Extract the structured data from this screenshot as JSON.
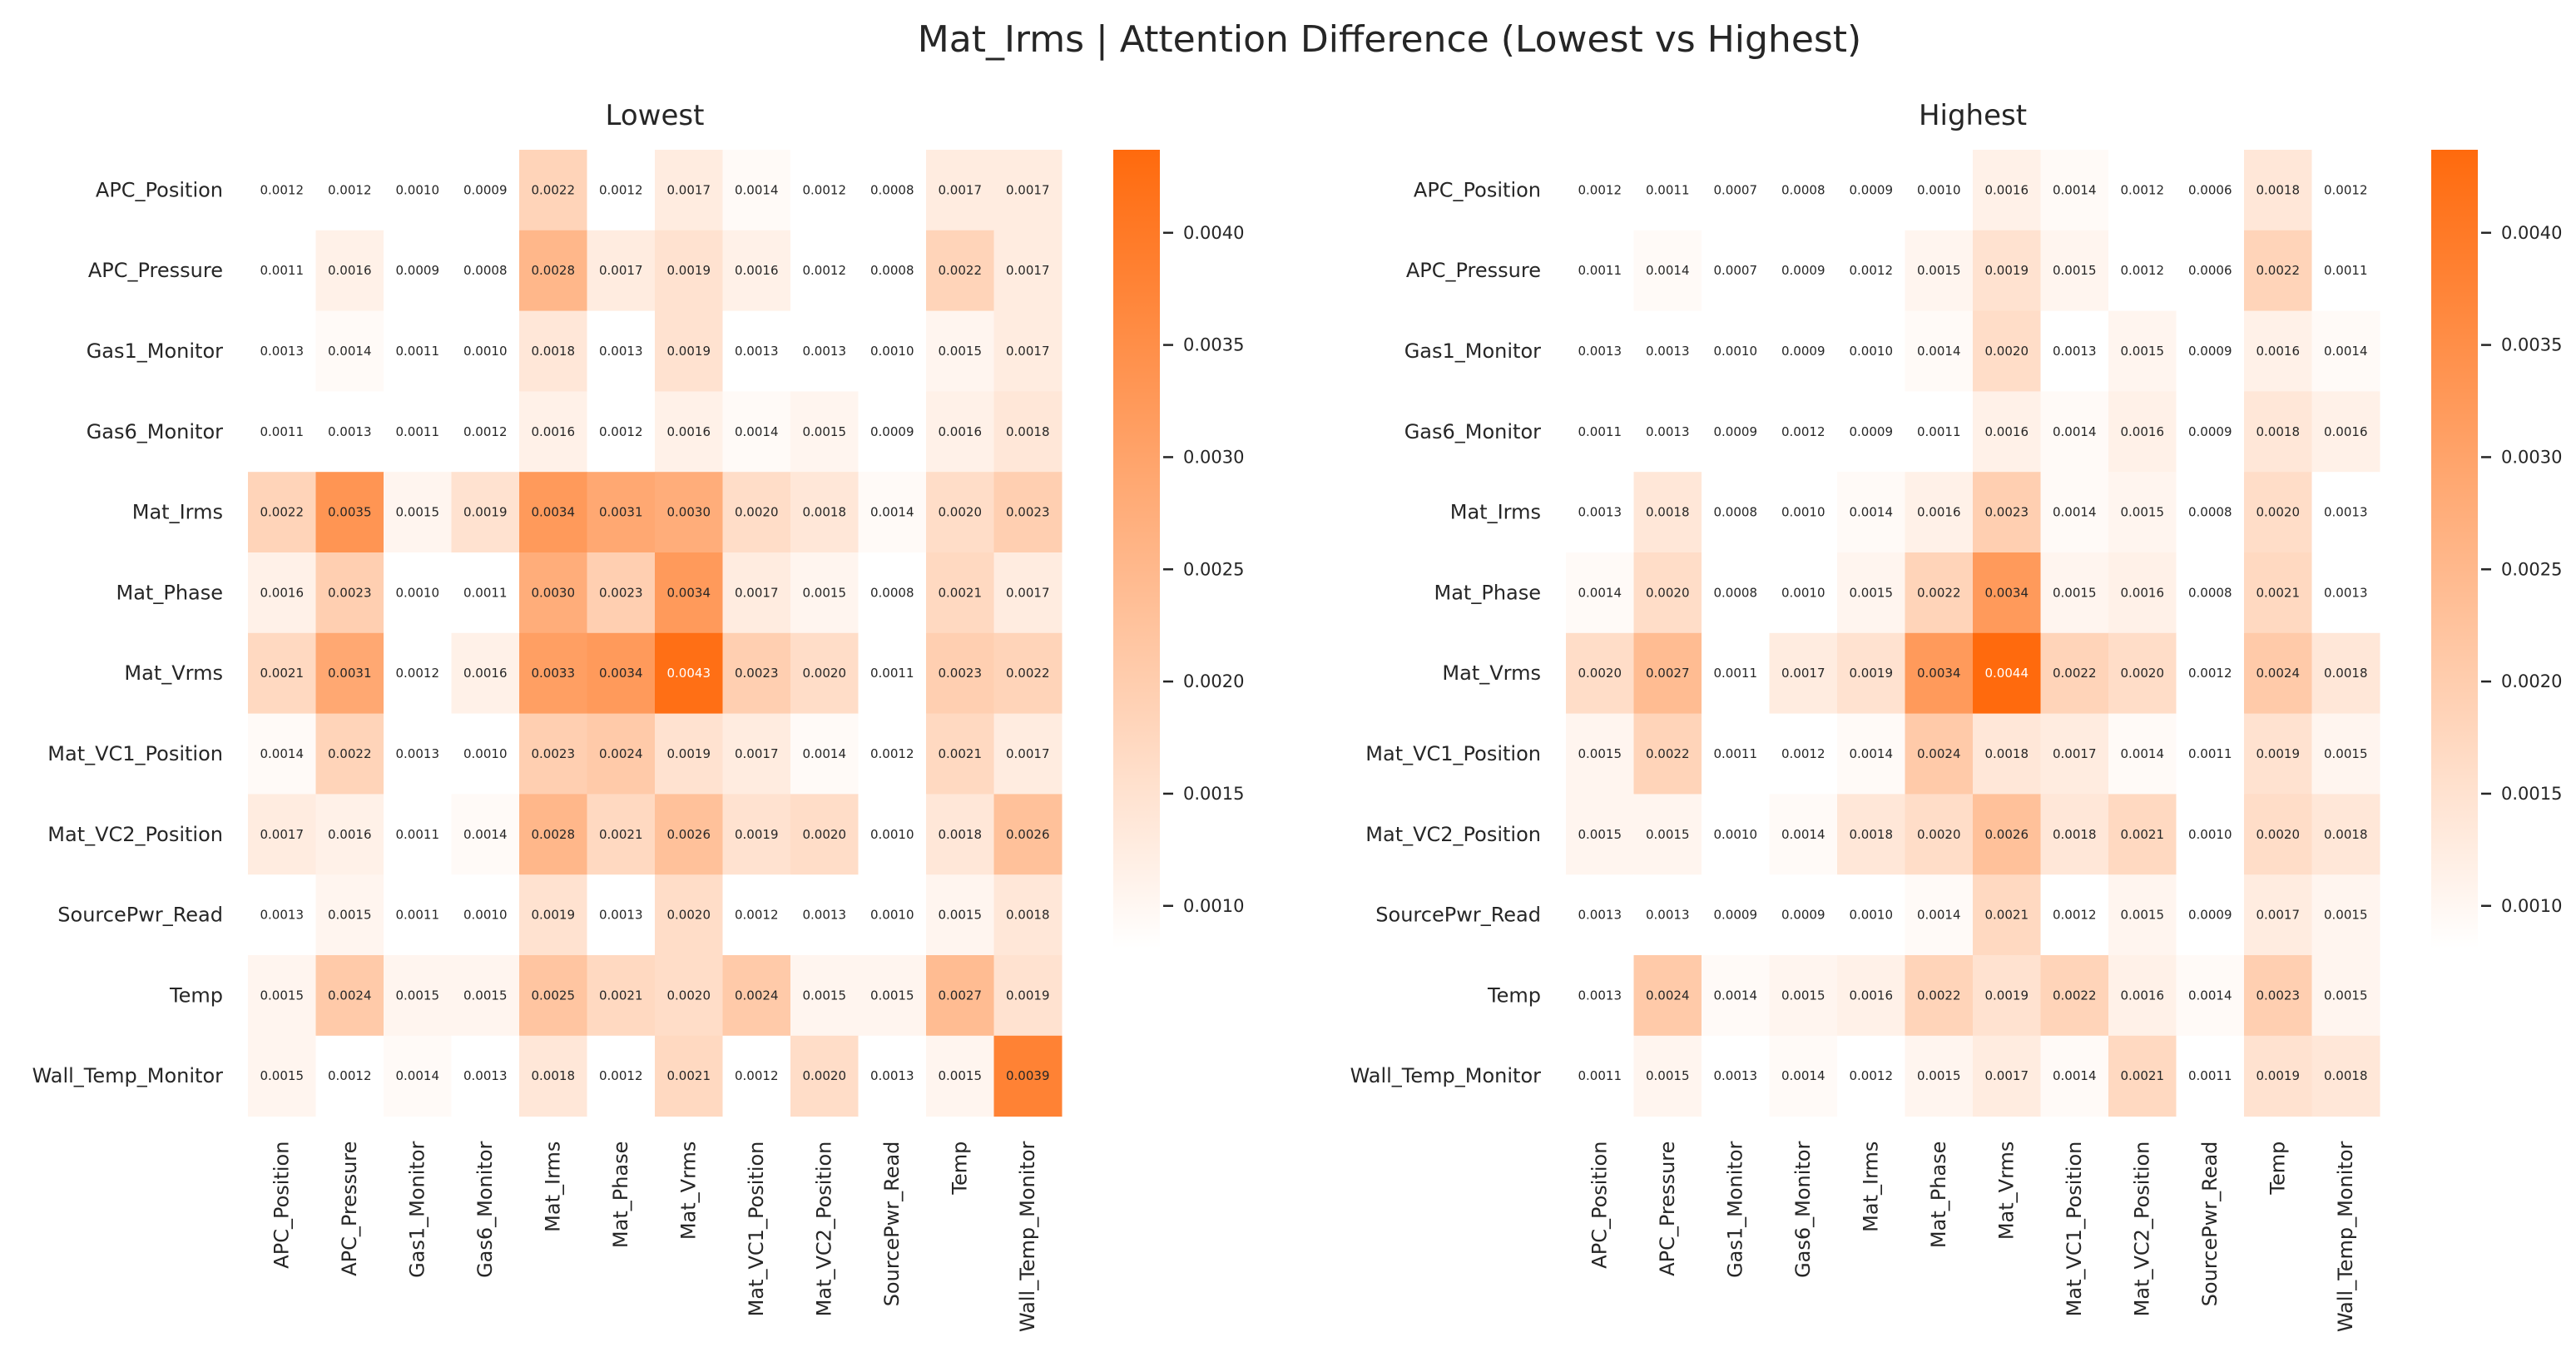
{
  "title": "Mat_Irms | Attention Difference (Lowest vs Highest)",
  "colors": {
    "low": "#ffffff",
    "high": "#ff6a0d",
    "text_dark": "#262626",
    "text_light": "#ffffff"
  },
  "chart_data": [
    {
      "type": "heatmap",
      "title": "Lowest",
      "rows": [
        "APC_Position",
        "APC_Pressure",
        "Gas1_Monitor",
        "Gas6_Monitor",
        "Mat_Irms",
        "Mat_Phase",
        "Mat_Vrms",
        "Mat_VC1_Position",
        "Mat_VC2_Position",
        "SourcePwr_Read",
        "Temp",
        "Wall_Temp_Monitor"
      ],
      "columns": [
        "APC_Position",
        "APC_Pressure",
        "Gas1_Monitor",
        "Gas6_Monitor",
        "Mat_Irms",
        "Mat_Phase",
        "Mat_Vrms",
        "Mat_VC1_Position",
        "Mat_VC2_Position",
        "SourcePwr_Read",
        "Temp",
        "Wall_Temp_Monitor"
      ],
      "values": [
        [
          "0.0012",
          "0.0012",
          "0.0010",
          "0.0009",
          "0.0022",
          "0.0012",
          "0.0017",
          "0.0014",
          "0.0012",
          "0.0008",
          "0.0017",
          "0.0017"
        ],
        [
          "0.0011",
          "0.0016",
          "0.0009",
          "0.0008",
          "0.0028",
          "0.0017",
          "0.0019",
          "0.0016",
          "0.0012",
          "0.0008",
          "0.0022",
          "0.0017"
        ],
        [
          "0.0013",
          "0.0014",
          "0.0011",
          "0.0010",
          "0.0018",
          "0.0013",
          "0.0019",
          "0.0013",
          "0.0013",
          "0.0010",
          "0.0015",
          "0.0017"
        ],
        [
          "0.0011",
          "0.0013",
          "0.0011",
          "0.0012",
          "0.0016",
          "0.0012",
          "0.0016",
          "0.0014",
          "0.0015",
          "0.0009",
          "0.0016",
          "0.0018"
        ],
        [
          "0.0022",
          "0.0035",
          "0.0015",
          "0.0019",
          "0.0034",
          "0.0031",
          "0.0030",
          "0.0020",
          "0.0018",
          "0.0014",
          "0.0020",
          "0.0023"
        ],
        [
          "0.0016",
          "0.0023",
          "0.0010",
          "0.0011",
          "0.0030",
          "0.0023",
          "0.0034",
          "0.0017",
          "0.0015",
          "0.0008",
          "0.0021",
          "0.0017"
        ],
        [
          "0.0021",
          "0.0031",
          "0.0012",
          "0.0016",
          "0.0033",
          "0.0034",
          "0.0043",
          "0.0023",
          "0.0020",
          "0.0011",
          "0.0023",
          "0.0022"
        ],
        [
          "0.0014",
          "0.0022",
          "0.0013",
          "0.0010",
          "0.0023",
          "0.0024",
          "0.0019",
          "0.0017",
          "0.0014",
          "0.0012",
          "0.0021",
          "0.0017"
        ],
        [
          "0.0017",
          "0.0016",
          "0.0011",
          "0.0014",
          "0.0028",
          "0.0021",
          "0.0026",
          "0.0019",
          "0.0020",
          "0.0010",
          "0.0018",
          "0.0026"
        ],
        [
          "0.0013",
          "0.0015",
          "0.0011",
          "0.0010",
          "0.0019",
          "0.0013",
          "0.0020",
          "0.0012",
          "0.0013",
          "0.0010",
          "0.0015",
          "0.0018"
        ],
        [
          "0.0015",
          "0.0024",
          "0.0015",
          "0.0015",
          "0.0025",
          "0.0021",
          "0.0020",
          "0.0024",
          "0.0015",
          "0.0015",
          "0.0027",
          "0.0019"
        ],
        [
          "0.0015",
          "0.0012",
          "0.0014",
          "0.0013",
          "0.0018",
          "0.0012",
          "0.0021",
          "0.0012",
          "0.0020",
          "0.0013",
          "0.0015",
          "0.0039"
        ]
      ],
      "colorbar": {
        "ticks": [
          "0.0010",
          "0.0015",
          "0.0020",
          "0.0025",
          "0.0030",
          "0.0035",
          "0.0040"
        ],
        "range": [
          0.0013,
          0.0044
        ]
      }
    },
    {
      "type": "heatmap",
      "title": "Highest",
      "rows": [
        "APC_Position",
        "APC_Pressure",
        "Gas1_Monitor",
        "Gas6_Monitor",
        "Mat_Irms",
        "Mat_Phase",
        "Mat_Vrms",
        "Mat_VC1_Position",
        "Mat_VC2_Position",
        "SourcePwr_Read",
        "Temp",
        "Wall_Temp_Monitor"
      ],
      "columns": [
        "APC_Position",
        "APC_Pressure",
        "Gas1_Monitor",
        "Gas6_Monitor",
        "Mat_Irms",
        "Mat_Phase",
        "Mat_Vrms",
        "Mat_VC1_Position",
        "Mat_VC2_Position",
        "SourcePwr_Read",
        "Temp",
        "Wall_Temp_Monitor"
      ],
      "values": [
        [
          "0.0012",
          "0.0011",
          "0.0007",
          "0.0008",
          "0.0009",
          "0.0010",
          "0.0016",
          "0.0014",
          "0.0012",
          "0.0006",
          "0.0018",
          "0.0012"
        ],
        [
          "0.0011",
          "0.0014",
          "0.0007",
          "0.0009",
          "0.0012",
          "0.0015",
          "0.0019",
          "0.0015",
          "0.0012",
          "0.0006",
          "0.0022",
          "0.0011"
        ],
        [
          "0.0013",
          "0.0013",
          "0.0010",
          "0.0009",
          "0.0010",
          "0.0014",
          "0.0020",
          "0.0013",
          "0.0015",
          "0.0009",
          "0.0016",
          "0.0014"
        ],
        [
          "0.0011",
          "0.0013",
          "0.0009",
          "0.0012",
          "0.0009",
          "0.0011",
          "0.0016",
          "0.0014",
          "0.0016",
          "0.0009",
          "0.0018",
          "0.0016"
        ],
        [
          "0.0013",
          "0.0018",
          "0.0008",
          "0.0010",
          "0.0014",
          "0.0016",
          "0.0023",
          "0.0014",
          "0.0015",
          "0.0008",
          "0.0020",
          "0.0013"
        ],
        [
          "0.0014",
          "0.0020",
          "0.0008",
          "0.0010",
          "0.0015",
          "0.0022",
          "0.0034",
          "0.0015",
          "0.0016",
          "0.0008",
          "0.0021",
          "0.0013"
        ],
        [
          "0.0020",
          "0.0027",
          "0.0011",
          "0.0017",
          "0.0019",
          "0.0034",
          "0.0044",
          "0.0022",
          "0.0020",
          "0.0012",
          "0.0024",
          "0.0018"
        ],
        [
          "0.0015",
          "0.0022",
          "0.0011",
          "0.0012",
          "0.0014",
          "0.0024",
          "0.0018",
          "0.0017",
          "0.0014",
          "0.0011",
          "0.0019",
          "0.0015"
        ],
        [
          "0.0015",
          "0.0015",
          "0.0010",
          "0.0014",
          "0.0018",
          "0.0020",
          "0.0026",
          "0.0018",
          "0.0021",
          "0.0010",
          "0.0020",
          "0.0018"
        ],
        [
          "0.0013",
          "0.0013",
          "0.0009",
          "0.0009",
          "0.0010",
          "0.0014",
          "0.0021",
          "0.0012",
          "0.0015",
          "0.0009",
          "0.0017",
          "0.0015"
        ],
        [
          "0.0013",
          "0.0024",
          "0.0014",
          "0.0015",
          "0.0016",
          "0.0022",
          "0.0019",
          "0.0022",
          "0.0016",
          "0.0014",
          "0.0023",
          "0.0015"
        ],
        [
          "0.0011",
          "0.0015",
          "0.0013",
          "0.0014",
          "0.0012",
          "0.0015",
          "0.0017",
          "0.0014",
          "0.0021",
          "0.0011",
          "0.0019",
          "0.0018"
        ]
      ],
      "colorbar": {
        "ticks": [
          "0.0010",
          "0.0015",
          "0.0020",
          "0.0025",
          "0.0030",
          "0.0035",
          "0.0040"
        ],
        "range": [
          0.0013,
          0.0044
        ]
      }
    }
  ]
}
